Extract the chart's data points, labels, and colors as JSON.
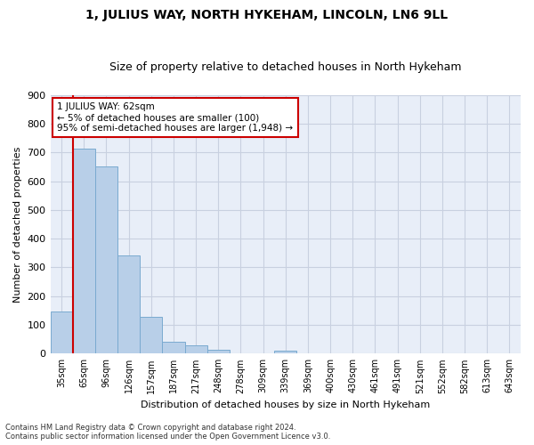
{
  "title": "1, JULIUS WAY, NORTH HYKEHAM, LINCOLN, LN6 9LL",
  "subtitle": "Size of property relative to detached houses in North Hykeham",
  "xlabel": "Distribution of detached houses by size in North Hykeham",
  "ylabel": "Number of detached properties",
  "categories": [
    "35sqm",
    "65sqm",
    "96sqm",
    "126sqm",
    "157sqm",
    "187sqm",
    "217sqm",
    "248sqm",
    "278sqm",
    "309sqm",
    "339sqm",
    "369sqm",
    "400sqm",
    "430sqm",
    "461sqm",
    "491sqm",
    "521sqm",
    "552sqm",
    "582sqm",
    "613sqm",
    "643sqm"
  ],
  "values": [
    148,
    713,
    651,
    341,
    127,
    40,
    30,
    12,
    0,
    0,
    10,
    0,
    0,
    0,
    0,
    0,
    0,
    0,
    0,
    0,
    0
  ],
  "bar_color": "#b8cfe8",
  "bar_edge_color": "#7aaad0",
  "background_color": "#e8eef8",
  "grid_color": "#c8d0e0",
  "annotation_text": "1 JULIUS WAY: 62sqm\n← 5% of detached houses are smaller (100)\n95% of semi-detached houses are larger (1,948) →",
  "annotation_box_color": "#ffffff",
  "annotation_box_edge": "#cc0000",
  "ylim": [
    0,
    900
  ],
  "yticks": [
    0,
    100,
    200,
    300,
    400,
    500,
    600,
    700,
    800,
    900
  ],
  "footer1": "Contains HM Land Registry data © Crown copyright and database right 2024.",
  "footer2": "Contains public sector information licensed under the Open Government Licence v3.0.",
  "vline_color": "#cc0000",
  "vline_pos": 0.5,
  "title_fontsize": 10,
  "subtitle_fontsize": 9
}
